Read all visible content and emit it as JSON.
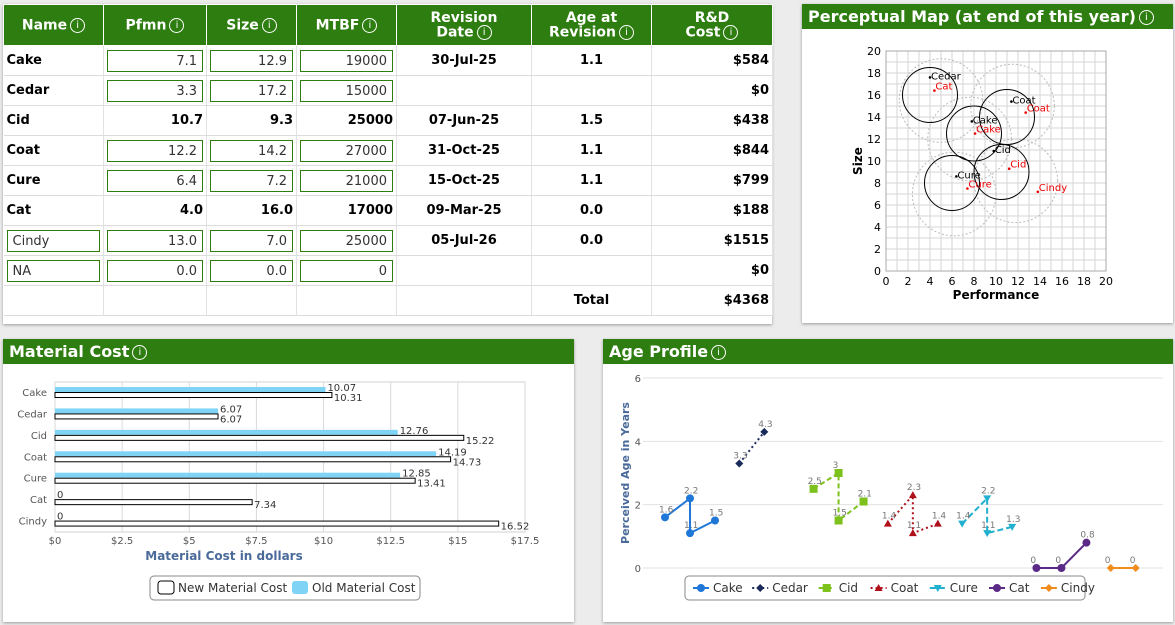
{
  "decisions": {
    "headers": {
      "name": "Name",
      "pfmn": "Pfmn",
      "size": "Size",
      "mtbf": "MTBF",
      "rev_date": [
        "Revision",
        "Date"
      ],
      "age_rev": [
        "Age at",
        "Revision"
      ],
      "rd_cost": [
        "R&D",
        "Cost"
      ]
    },
    "rows": [
      {
        "name": "Cake",
        "pfmn": "7.1",
        "size": "12.9",
        "mtbf": "19000",
        "rev_date": "30-Jul-25",
        "age": "1.1",
        "cost": "$584",
        "editable": true,
        "name_edit": false
      },
      {
        "name": "Cedar",
        "pfmn": "3.3",
        "size": "17.2",
        "mtbf": "15000",
        "rev_date": "",
        "age": "",
        "cost": "$0",
        "editable": true,
        "name_edit": false
      },
      {
        "name": "Cid",
        "pfmn": "10.7",
        "size": "9.3",
        "mtbf": "25000",
        "rev_date": "07-Jun-25",
        "age": "1.5",
        "cost": "$438",
        "editable": false,
        "name_edit": false
      },
      {
        "name": "Coat",
        "pfmn": "12.2",
        "size": "14.2",
        "mtbf": "27000",
        "rev_date": "31-Oct-25",
        "age": "1.1",
        "cost": "$844",
        "editable": true,
        "name_edit": false
      },
      {
        "name": "Cure",
        "pfmn": "6.4",
        "size": "7.2",
        "mtbf": "21000",
        "rev_date": "15-Oct-25",
        "age": "1.1",
        "cost": "$799",
        "editable": true,
        "name_edit": false
      },
      {
        "name": "Cat",
        "pfmn": "4.0",
        "size": "16.0",
        "mtbf": "17000",
        "rev_date": "09-Mar-25",
        "age": "0.0",
        "cost": "$188",
        "editable": false,
        "name_edit": false
      },
      {
        "name": "Cindy",
        "pfmn": "13.0",
        "size": "7.0",
        "mtbf": "25000",
        "rev_date": "05-Jul-26",
        "age": "0.0",
        "cost": "$1515",
        "editable": true,
        "name_edit": true
      },
      {
        "name": "NA",
        "pfmn": "0.0",
        "size": "0.0",
        "mtbf": "0",
        "rev_date": "",
        "age": "",
        "cost": "$0",
        "editable": true,
        "name_edit": true
      }
    ],
    "total_label": "Total",
    "total_value": "$4368"
  },
  "perceptual_map": {
    "title": "Perceptual Map (at end of this year)",
    "chart_data": {
      "type": "scatter",
      "xlabel": "Performance",
      "ylabel": "Size",
      "xlim": [
        0,
        20
      ],
      "ylim": [
        0,
        20
      ],
      "xticks": [
        "0",
        "2",
        "4",
        "6",
        "8",
        "10",
        "12",
        "14",
        "16",
        "18",
        "20"
      ],
      "yticks": [
        "0",
        "2",
        "4",
        "6",
        "8",
        "10",
        "12",
        "14",
        "16",
        "18",
        "20"
      ],
      "black_points": [
        {
          "label": "Cedar",
          "x": 4.0,
          "y": 17.6
        },
        {
          "label": "Coat",
          "x": 11.4,
          "y": 15.4
        },
        {
          "label": "Cake",
          "x": 7.8,
          "y": 13.6
        },
        {
          "label": "Cid",
          "x": 9.8,
          "y": 10.9
        },
        {
          "label": "Cure",
          "x": 6.4,
          "y": 8.6
        }
      ],
      "red_points": [
        {
          "label": "Cat",
          "x": 4.4,
          "y": 16.4
        },
        {
          "label": "Coat",
          "x": 12.7,
          "y": 14.4
        },
        {
          "label": "Cake",
          "x": 8.1,
          "y": 12.5
        },
        {
          "label": "Cid",
          "x": 11.2,
          "y": 9.3
        },
        {
          "label": "Cure",
          "x": 7.4,
          "y": 7.5
        },
        {
          "label": "Cindy",
          "x": 13.8,
          "y": 7.2
        }
      ],
      "solid_circles": [
        {
          "x": 4.0,
          "y": 16.0
        },
        {
          "x": 11.0,
          "y": 14.0
        },
        {
          "x": 8.0,
          "y": 12.5
        },
        {
          "x": 10.5,
          "y": 9.0
        },
        {
          "x": 6.0,
          "y": 8.0
        }
      ],
      "dotted_circles": [
        {
          "x": 5.0,
          "y": 15.5
        },
        {
          "x": 11.5,
          "y": 15.0
        },
        {
          "x": 7.6,
          "y": 12.0
        },
        {
          "x": 11.8,
          "y": 8.2
        },
        {
          "x": 6.2,
          "y": 7.0
        }
      ]
    }
  },
  "material_cost": {
    "title": "Material Cost",
    "chart_data": {
      "type": "bar",
      "orientation": "horizontal",
      "categories": [
        "Cake",
        "Cedar",
        "Cid",
        "Coat",
        "Cure",
        "Cat",
        "Cindy"
      ],
      "series": [
        {
          "name": "Old Material Cost",
          "color": "#7fd3f5",
          "values": [
            10.07,
            6.07,
            12.76,
            14.19,
            12.85,
            0,
            0
          ]
        },
        {
          "name": "New Material Cost",
          "color": "#ffffff",
          "values": [
            10.31,
            6.07,
            15.22,
            14.73,
            13.41,
            7.34,
            16.52
          ]
        }
      ],
      "labels_old": [
        "10.07",
        "6.07",
        "12.76",
        "14.19",
        "12.85",
        "0",
        "0"
      ],
      "labels_new": [
        "10.31",
        "6.07",
        "15.22",
        "14.73",
        "13.41",
        "7.34",
        "16.52"
      ],
      "xlabel": "Material Cost in dollars",
      "xlim": [
        0,
        17.5
      ],
      "xticks": [
        "$0",
        "$2.5",
        "$5",
        "$7.5",
        "$10",
        "$12.5",
        "$15",
        "$17.5"
      ],
      "legend": [
        "New Material Cost",
        "Old Material Cost"
      ]
    }
  },
  "age_profile": {
    "title": "Age Profile",
    "chart_data": {
      "type": "line",
      "ylabel": "Perceived Age in Years",
      "ylim": [
        0,
        6
      ],
      "yticks": [
        "0",
        "2",
        "4",
        "6"
      ],
      "series": [
        {
          "name": "Cake",
          "color": "#1f77d8",
          "dash": "",
          "marker": "circle",
          "points": [
            [
              0,
              1.6
            ],
            [
              1,
              2.2
            ],
            [
              1,
              1.1
            ],
            [
              2,
              1.5
            ]
          ],
          "labels": [
            "1.6",
            "2.2",
            "1.1",
            "1.5"
          ]
        },
        {
          "name": "Cedar",
          "color": "#1a2a5a",
          "dash": "2,3",
          "marker": "diamond",
          "points": [
            [
              0,
              3.3
            ],
            [
              1,
              4.3
            ]
          ],
          "labels": [
            "3.3",
            "4.3"
          ]
        },
        {
          "name": "Cid",
          "color": "#7cc11c",
          "dash": "5,3",
          "marker": "square",
          "points": [
            [
              0,
              2.5
            ],
            [
              1,
              3.0
            ],
            [
              1,
              1.5
            ],
            [
              2,
              2.1
            ]
          ],
          "labels": [
            "2.5",
            "3",
            "1.5",
            "2.1"
          ]
        },
        {
          "name": "Coat",
          "color": "#b0101a",
          "dash": "2,3",
          "marker": "triangle",
          "points": [
            [
              0,
              1.4
            ],
            [
              1,
              2.3
            ],
            [
              1,
              1.1
            ],
            [
              2,
              1.4
            ]
          ],
          "labels": [
            "1.4",
            "2.3",
            "1.1",
            "1.4"
          ]
        },
        {
          "name": "Cure",
          "color": "#20b0d0",
          "dash": "6,3",
          "marker": "tri-down",
          "points": [
            [
              0,
              1.4
            ],
            [
              1,
              2.2
            ],
            [
              1,
              1.1
            ],
            [
              2,
              1.3
            ]
          ],
          "labels": [
            "1.4",
            "2.2",
            "1.1",
            "1.3"
          ]
        },
        {
          "name": "Cat",
          "color": "#5b2a86",
          "dash": "",
          "marker": "circle",
          "points": [
            [
              0,
              0
            ],
            [
              1,
              0
            ],
            [
              2,
              0.8
            ]
          ],
          "labels": [
            "0",
            "0",
            "0.8"
          ]
        },
        {
          "name": "Cindy",
          "color": "#f08c1c",
          "dash": "",
          "marker": "diamond",
          "points": [
            [
              0,
              0
            ],
            [
              1,
              0
            ]
          ],
          "labels": [
            "0",
            "0"
          ]
        }
      ],
      "legend": [
        "Cake",
        "Cedar",
        "Cid",
        "Coat",
        "Cure",
        "Cat",
        "Cindy"
      ]
    }
  }
}
